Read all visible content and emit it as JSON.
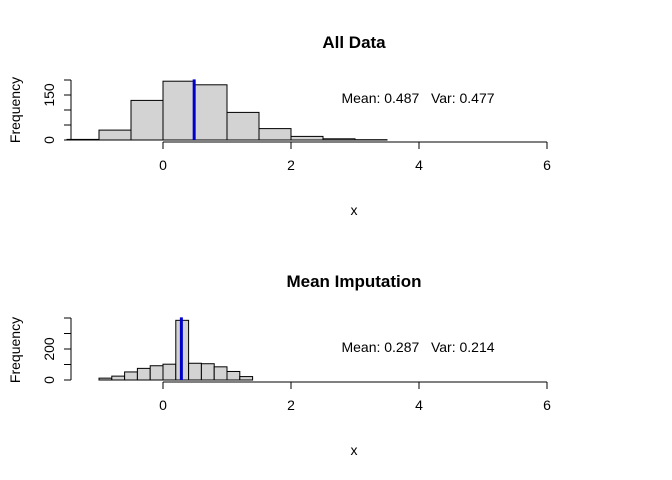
{
  "chart_data": [
    {
      "type": "bar",
      "title": "All Data",
      "xlabel": "x",
      "ylabel": "Frequency",
      "xlim": [
        -1.5,
        6
      ],
      "ylim": [
        0,
        200
      ],
      "x_ticks": [
        "0",
        "2",
        "4",
        "6"
      ],
      "y_ticks": [
        "0",
        "50",
        "100",
        "150",
        "200"
      ],
      "y_tick_labels_shown": [
        "0",
        "150"
      ],
      "bins": [
        {
          "from": -1.5,
          "to": -1.0,
          "count": 2
        },
        {
          "from": -1.0,
          "to": -0.5,
          "count": 33
        },
        {
          "from": -0.5,
          "to": 0.0,
          "count": 132
        },
        {
          "from": 0.0,
          "to": 0.5,
          "count": 196
        },
        {
          "from": 0.5,
          "to": 1.0,
          "count": 184
        },
        {
          "from": 1.0,
          "to": 1.5,
          "count": 92
        },
        {
          "from": 1.5,
          "to": 2.0,
          "count": 38
        },
        {
          "from": 2.0,
          "to": 2.5,
          "count": 12
        },
        {
          "from": 2.5,
          "to": 3.0,
          "count": 4
        },
        {
          "from": 3.0,
          "to": 3.5,
          "count": 1
        }
      ],
      "mean_line": 0.487,
      "mean_line_color": "#0000cd",
      "bar_fill": "#d3d3d3",
      "annotation": "Mean: 0.487   Var: 0.477"
    },
    {
      "type": "bar",
      "title": "Mean Imputation",
      "xlabel": "x",
      "ylabel": "Frequency",
      "xlim": [
        -1.5,
        6
      ],
      "ylim": [
        0,
        400
      ],
      "x_ticks": [
        "0",
        "2",
        "4",
        "6"
      ],
      "y_ticks": [
        "0",
        "100",
        "200",
        "300",
        "400"
      ],
      "y_tick_labels_shown": [
        "0",
        "200"
      ],
      "bins": [
        {
          "from": -1.0,
          "to": -0.8,
          "count": 12
        },
        {
          "from": -0.8,
          "to": -0.6,
          "count": 25
        },
        {
          "from": -0.6,
          "to": -0.4,
          "count": 52
        },
        {
          "from": -0.4,
          "to": -0.2,
          "count": 75
        },
        {
          "from": -0.2,
          "to": 0.0,
          "count": 92
        },
        {
          "from": 0.0,
          "to": 0.2,
          "count": 102
        },
        {
          "from": 0.2,
          "to": 0.4,
          "count": 385
        },
        {
          "from": 0.4,
          "to": 0.6,
          "count": 108
        },
        {
          "from": 0.6,
          "to": 0.8,
          "count": 105
        },
        {
          "from": 0.8,
          "to": 1.0,
          "count": 85
        },
        {
          "from": 1.0,
          "to": 1.2,
          "count": 55
        },
        {
          "from": 1.2,
          "to": 1.4,
          "count": 22
        }
      ],
      "mean_line": 0.287,
      "mean_line_color": "#0000cd",
      "bar_fill": "#d3d3d3",
      "annotation": "Mean: 0.287   Var: 0.214"
    }
  ]
}
